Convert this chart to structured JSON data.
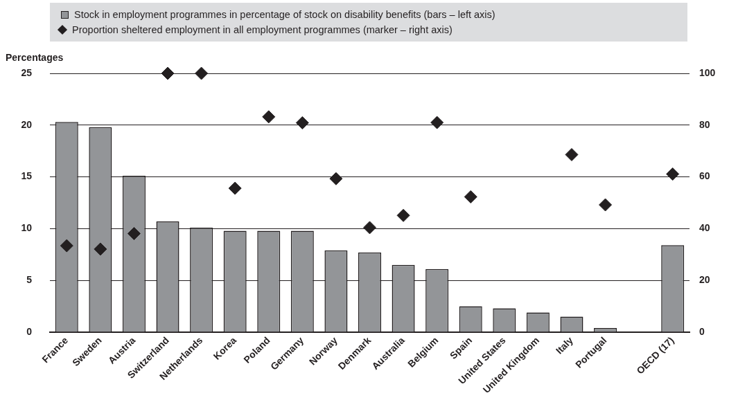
{
  "chart_data": {
    "type": "bar",
    "ylabel": "Percentages",
    "categories": [
      "France",
      "Sweden",
      "Austria",
      "Switzerland",
      "Netherlands",
      "Korea",
      "Poland",
      "Germany",
      "Norway",
      "Denmark",
      "Australia",
      "Belgium",
      "Spain",
      "United States",
      "United Kingdom",
      "Italy",
      "Portugal",
      null,
      "OECD (17)"
    ],
    "series": [
      {
        "name": "Stock in employment programmes in percentage of stock on disability benefits (bars – left axis)",
        "color": "#939598",
        "values": [
          20.3,
          19.8,
          15.1,
          10.7,
          10.1,
          9.8,
          9.8,
          9.8,
          7.9,
          7.7,
          6.5,
          6.1,
          2.5,
          2.3,
          1.9,
          1.5,
          0.4,
          null,
          8.4
        ]
      },
      {
        "name": "Proportion sheltered employment in all employment programmes (marker – right axis)",
        "type": "scatter",
        "axis": "y2",
        "color": "#231f20",
        "marker": "diamond",
        "values": [
          33.4,
          32.1,
          38.1,
          100,
          100,
          55.6,
          83.2,
          80.9,
          59.3,
          40.4,
          45.1,
          81.0,
          52.3,
          null,
          null,
          68.6,
          49.2,
          null,
          61.1
        ]
      }
    ],
    "ylim": [
      0,
      25
    ],
    "yticks": [
      0,
      5,
      10,
      15,
      20,
      25
    ],
    "y2lim": [
      0,
      100
    ],
    "y2ticks": [
      0,
      20,
      40,
      60,
      80,
      100
    ],
    "grid": "y",
    "legend": "top"
  }
}
